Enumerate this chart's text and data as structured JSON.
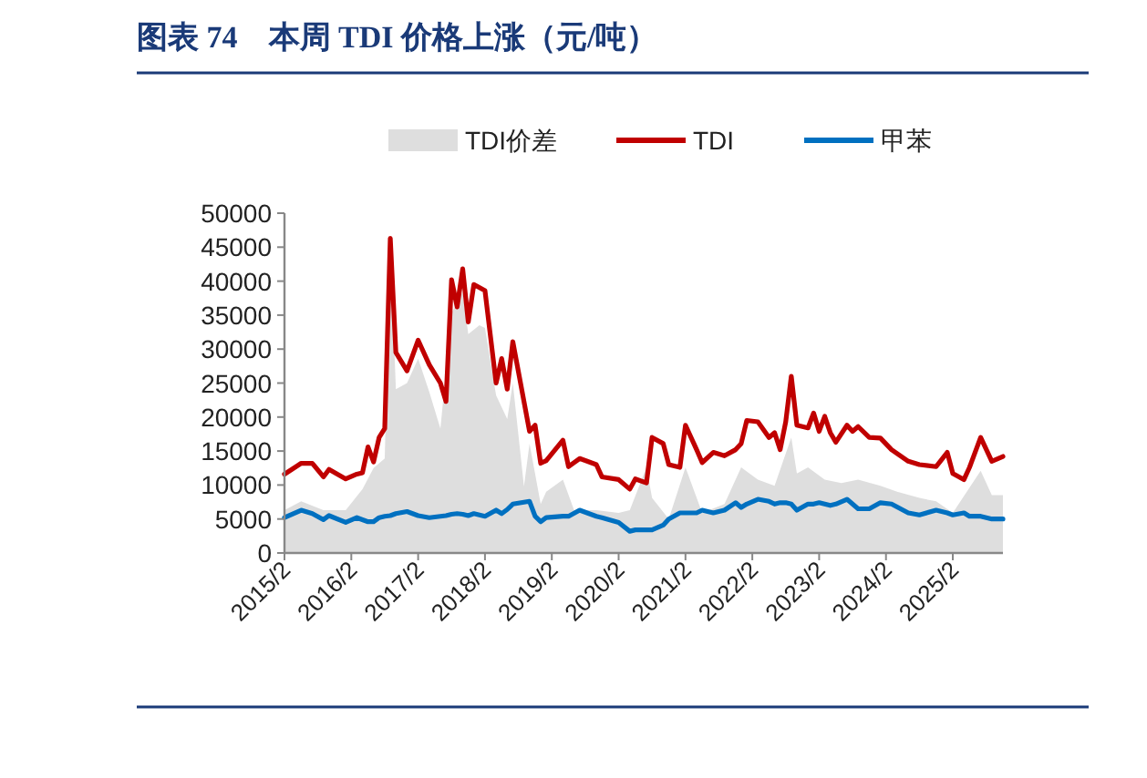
{
  "chart_data": {
    "type": "line",
    "title": "图表 74　本周 TDI 价格上涨（元/吨）",
    "series": [
      {
        "name": "TDI价差",
        "type": "area",
        "color": "#dedede",
        "x": [
          "2015-02",
          "2015-05",
          "2015-09",
          "2016-01",
          "2016-04",
          "2016-06",
          "2016-08",
          "2016-09",
          "2016-10",
          "2016-12",
          "2017-02",
          "2017-04",
          "2017-06",
          "2017-08",
          "2017-10",
          "2017-11",
          "2018-01",
          "2018-02",
          "2018-04",
          "2018-06",
          "2018-07",
          "2018-09",
          "2018-10",
          "2018-12",
          "2019-01",
          "2019-04",
          "2019-06",
          "2019-10",
          "2020-02",
          "2020-04",
          "2020-07",
          "2020-08",
          "2020-11",
          "2021-02",
          "2021-05",
          "2021-09",
          "2021-12",
          "2022-03",
          "2022-06",
          "2022-09",
          "2022-10",
          "2022-12",
          "2023-03",
          "2023-06",
          "2023-09",
          "2024-01",
          "2024-04",
          "2024-08",
          "2024-11",
          "2025-02",
          "2025-07",
          "2025-09",
          "2025-11"
        ],
        "values": [
          6300,
          7600,
          6300,
          6300,
          9400,
          12500,
          13900,
          46000,
          24100,
          25000,
          28600,
          23700,
          18300,
          35300,
          38400,
          32200,
          33500,
          33100,
          23200,
          19700,
          25000,
          9800,
          16100,
          7200,
          9000,
          10800,
          6300,
          6300,
          5900,
          6300,
          12600,
          8100,
          5000,
          12600,
          5900,
          7200,
          12600,
          10800,
          9900,
          17000,
          11700,
          12600,
          10800,
          10300,
          10800,
          9900,
          9000,
          8100,
          7600,
          5900,
          12100,
          8500,
          8500
        ]
      },
      {
        "name": "TDI",
        "color": "#c00000",
        "x": [
          "2015-02",
          "2015-05",
          "2015-07",
          "2015-09",
          "2015-10",
          "2016-01",
          "2016-03",
          "2016-04",
          "2016-05",
          "2016-06",
          "2016-07",
          "2016-08",
          "2016-09",
          "2016-10",
          "2016-12",
          "2017-02",
          "2017-04",
          "2017-06",
          "2017-07",
          "2017-08",
          "2017-09",
          "2017-10",
          "2017-11",
          "2017-12",
          "2018-02",
          "2018-04",
          "2018-05",
          "2018-06",
          "2018-07",
          "2018-10",
          "2018-11",
          "2018-12",
          "2019-01",
          "2019-04",
          "2019-05",
          "2019-07",
          "2019-10",
          "2019-11",
          "2020-02",
          "2020-04",
          "2020-05",
          "2020-07",
          "2020-08",
          "2020-10",
          "2020-11",
          "2021-01",
          "2021-02",
          "2021-04",
          "2021-05",
          "2021-07",
          "2021-09",
          "2021-11",
          "2021-12",
          "2022-01",
          "2022-03",
          "2022-05",
          "2022-06",
          "2022-07",
          "2022-08",
          "2022-09",
          "2022-10",
          "2022-12",
          "2023-01",
          "2023-02",
          "2023-03",
          "2023-04",
          "2023-05",
          "2023-07",
          "2023-08",
          "2023-09",
          "2023-11",
          "2024-01",
          "2024-03",
          "2024-06",
          "2024-08",
          "2024-11",
          "2025-01",
          "2025-02",
          "2025-04",
          "2025-05",
          "2025-07",
          "2025-09",
          "2025-11"
        ],
        "values": [
          11600,
          13200,
          13200,
          11200,
          12300,
          10900,
          11600,
          11800,
          15600,
          13400,
          17000,
          18300,
          46300,
          29500,
          26800,
          31300,
          27700,
          25000,
          22300,
          40200,
          36200,
          41800,
          34000,
          39500,
          38600,
          25000,
          28600,
          24100,
          31100,
          17900,
          18800,
          13200,
          13600,
          16600,
          12700,
          13900,
          13000,
          11200,
          10800,
          9400,
          10900,
          10300,
          17000,
          16100,
          13000,
          12600,
          18800,
          15200,
          13300,
          14800,
          14300,
          15200,
          16100,
          19500,
          19300,
          17000,
          17700,
          15200,
          19300,
          26000,
          18800,
          18400,
          20600,
          17900,
          20100,
          17700,
          16300,
          18800,
          17900,
          18600,
          17000,
          16900,
          15200,
          13500,
          13000,
          12700,
          14800,
          11700,
          10800,
          12600,
          17000,
          13500,
          14200
        ]
      },
      {
        "name": "甲苯",
        "color": "#0070c0",
        "x": [
          "2015-02",
          "2015-05",
          "2015-07",
          "2015-09",
          "2015-10",
          "2016-01",
          "2016-03",
          "2016-04",
          "2016-05",
          "2016-06",
          "2016-07",
          "2016-08",
          "2016-09",
          "2016-10",
          "2016-12",
          "2017-02",
          "2017-04",
          "2017-06",
          "2017-07",
          "2017-08",
          "2017-09",
          "2017-10",
          "2017-11",
          "2017-12",
          "2018-02",
          "2018-04",
          "2018-05",
          "2018-06",
          "2018-07",
          "2018-10",
          "2018-11",
          "2018-12",
          "2019-01",
          "2019-04",
          "2019-05",
          "2019-07",
          "2019-10",
          "2019-11",
          "2020-02",
          "2020-04",
          "2020-05",
          "2020-07",
          "2020-08",
          "2020-10",
          "2020-11",
          "2021-01",
          "2021-02",
          "2021-04",
          "2021-05",
          "2021-07",
          "2021-09",
          "2021-11",
          "2021-12",
          "2022-01",
          "2022-03",
          "2022-05",
          "2022-06",
          "2022-07",
          "2022-08",
          "2022-09",
          "2022-10",
          "2022-12",
          "2023-01",
          "2023-02",
          "2023-03",
          "2023-04",
          "2023-05",
          "2023-07",
          "2023-08",
          "2023-09",
          "2023-11",
          "2024-01",
          "2024-03",
          "2024-06",
          "2024-08",
          "2024-11",
          "2025-01",
          "2025-02",
          "2025-04",
          "2025-05",
          "2025-07",
          "2025-09",
          "2025-11"
        ],
        "values": [
          5200,
          6300,
          5800,
          4900,
          5500,
          4500,
          5200,
          4900,
          4600,
          4600,
          5200,
          5400,
          5500,
          5800,
          6100,
          5500,
          5200,
          5400,
          5500,
          5700,
          5800,
          5700,
          5500,
          5800,
          5400,
          6300,
          5800,
          6400,
          7200,
          7600,
          5400,
          4600,
          5200,
          5400,
          5400,
          6300,
          5400,
          5200,
          4500,
          3200,
          3400,
          3400,
          3400,
          4100,
          5000,
          5900,
          5900,
          5900,
          6300,
          5900,
          6300,
          7400,
          6700,
          7200,
          7900,
          7600,
          7200,
          7400,
          7400,
          7200,
          6300,
          7200,
          7200,
          7400,
          7200,
          7000,
          7200,
          7900,
          7200,
          6500,
          6500,
          7400,
          7200,
          5900,
          5600,
          6300,
          5900,
          5600,
          5900,
          5400,
          5400,
          5000,
          5000
        ]
      }
    ],
    "xlim": [
      "2015-02",
      "2025-11"
    ],
    "xticks": [
      {
        "value": "2015-02",
        "label": "2015/2"
      },
      {
        "value": "2016-02",
        "label": "2016/2"
      },
      {
        "value": "2017-02",
        "label": "2017/2"
      },
      {
        "value": "2018-02",
        "label": "2018/2"
      },
      {
        "value": "2019-02",
        "label": "2019/2"
      },
      {
        "value": "2020-02",
        "label": "2020/2"
      },
      {
        "value": "2021-02",
        "label": "2021/2"
      },
      {
        "value": "2022-02",
        "label": "2022/2"
      },
      {
        "value": "2023-02",
        "label": "2023/2"
      },
      {
        "value": "2024-02",
        "label": "2024/2"
      },
      {
        "value": "2025-02",
        "label": "2025/2"
      }
    ],
    "ylim": [
      0,
      50000
    ],
    "yticks": [
      0,
      5000,
      10000,
      15000,
      20000,
      25000,
      30000,
      35000,
      40000,
      45000,
      50000
    ],
    "grid": false,
    "legend": "top"
  }
}
